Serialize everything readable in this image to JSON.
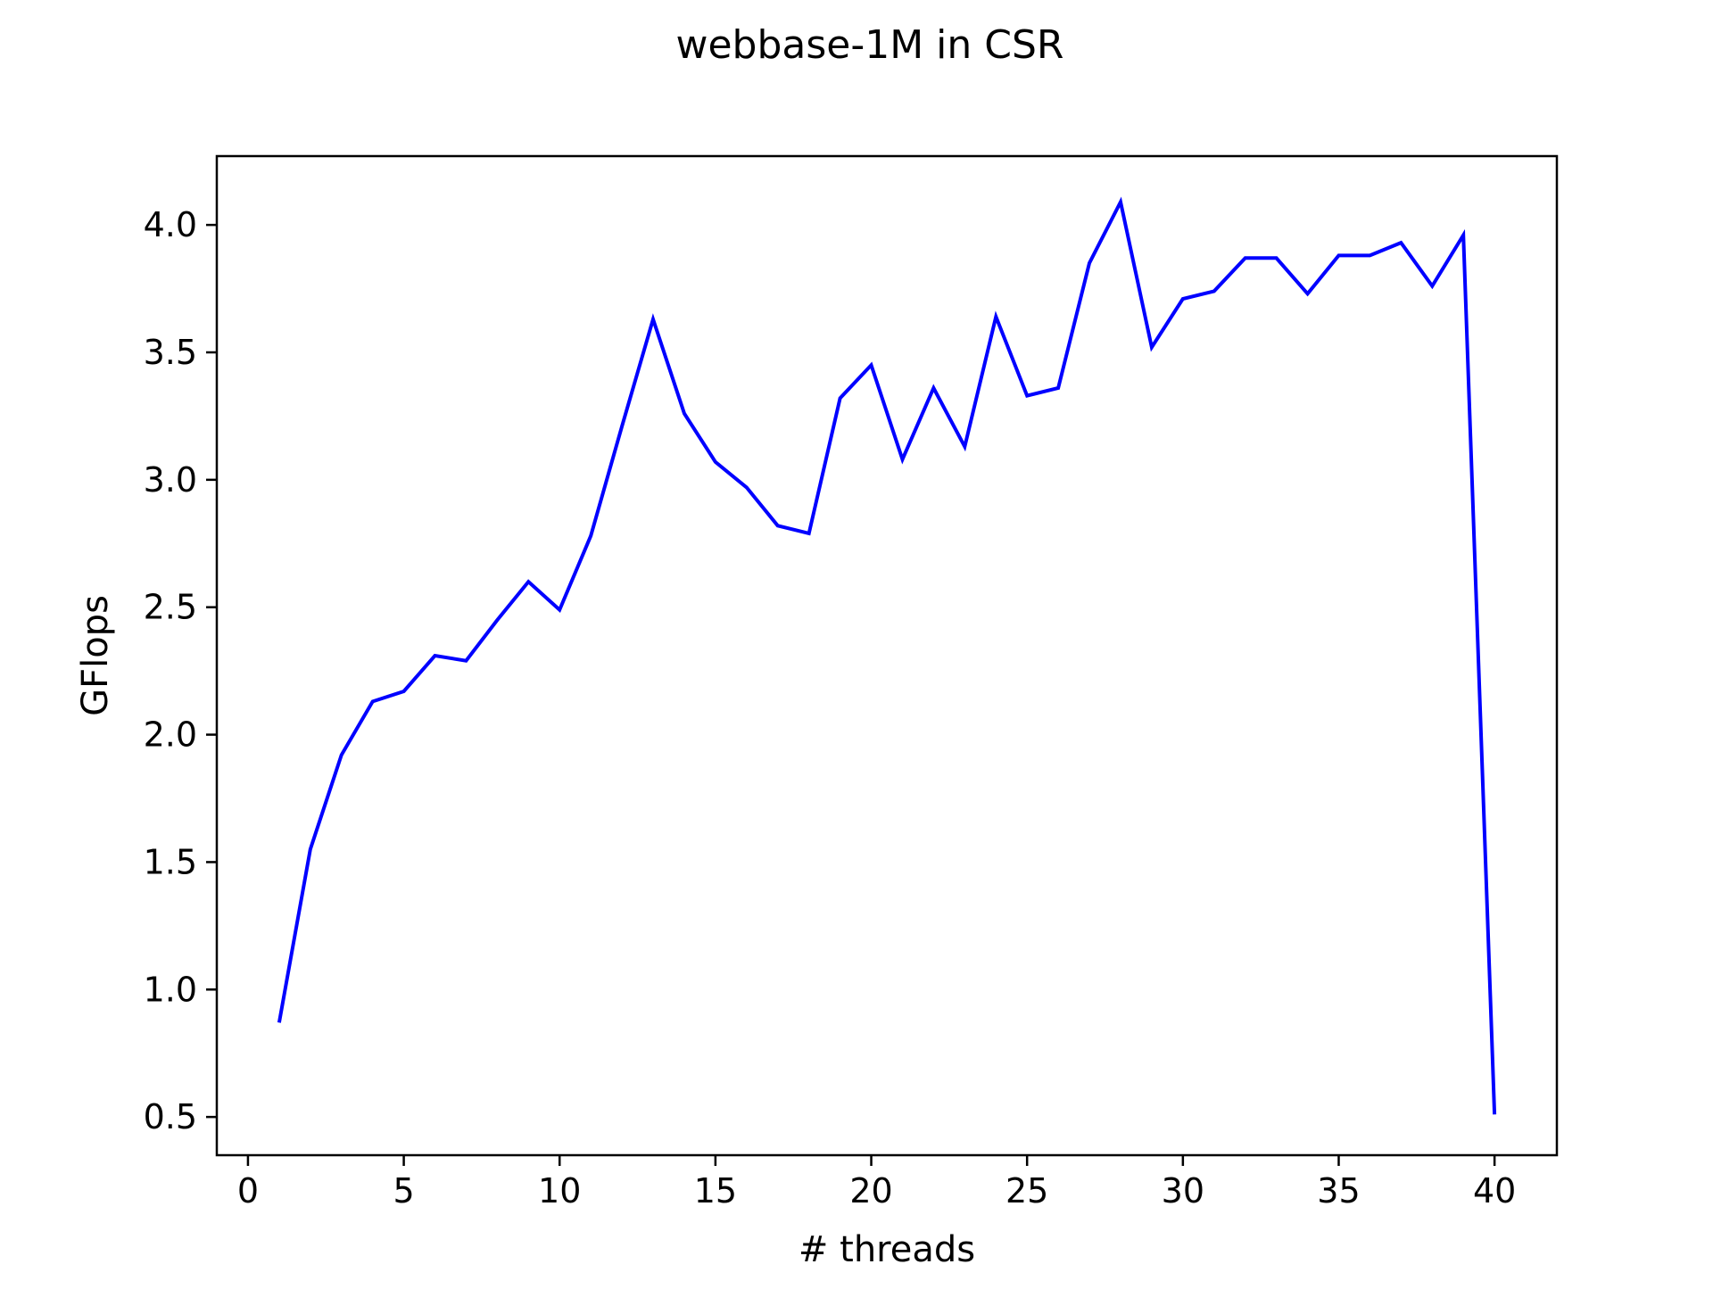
{
  "chart_data": {
    "type": "line",
    "title": "webbase-1M in CSR",
    "xlabel": "# threads",
    "ylabel": "GFlops",
    "xlim": [
      -1,
      42
    ],
    "ylim": [
      0.35,
      4.27
    ],
    "xticks": [
      0,
      5,
      10,
      15,
      20,
      25,
      30,
      35,
      40
    ],
    "yticks": [
      0.5,
      1.0,
      1.5,
      2.0,
      2.5,
      3.0,
      3.5,
      4.0
    ],
    "xtick_labels": [
      "0",
      "5",
      "10",
      "15",
      "20",
      "25",
      "30",
      "35",
      "40"
    ],
    "ytick_labels": [
      "0.5",
      "1.0",
      "1.5",
      "2.0",
      "2.5",
      "3.0",
      "3.5",
      "4.0"
    ],
    "grid": false,
    "legend": "none",
    "series": [
      {
        "color": "#0000ff",
        "x": [
          1,
          2,
          3,
          4,
          5,
          6,
          7,
          8,
          9,
          10,
          11,
          12,
          13,
          14,
          15,
          16,
          17,
          18,
          19,
          20,
          21,
          22,
          23,
          24,
          25,
          26,
          27,
          28,
          29,
          30,
          31,
          32,
          33,
          34,
          35,
          36,
          37,
          38,
          39,
          40
        ],
        "y": [
          0.87,
          1.55,
          1.92,
          2.13,
          2.17,
          2.31,
          2.29,
          2.45,
          2.6,
          2.49,
          2.78,
          3.21,
          3.63,
          3.26,
          3.07,
          2.97,
          2.82,
          2.79,
          3.32,
          3.45,
          3.08,
          3.36,
          3.13,
          3.64,
          3.33,
          3.36,
          3.85,
          4.09,
          3.52,
          3.71,
          3.74,
          3.87,
          3.87,
          3.73,
          3.88,
          3.88,
          3.93,
          3.76,
          3.96,
          0.51
        ]
      }
    ]
  }
}
